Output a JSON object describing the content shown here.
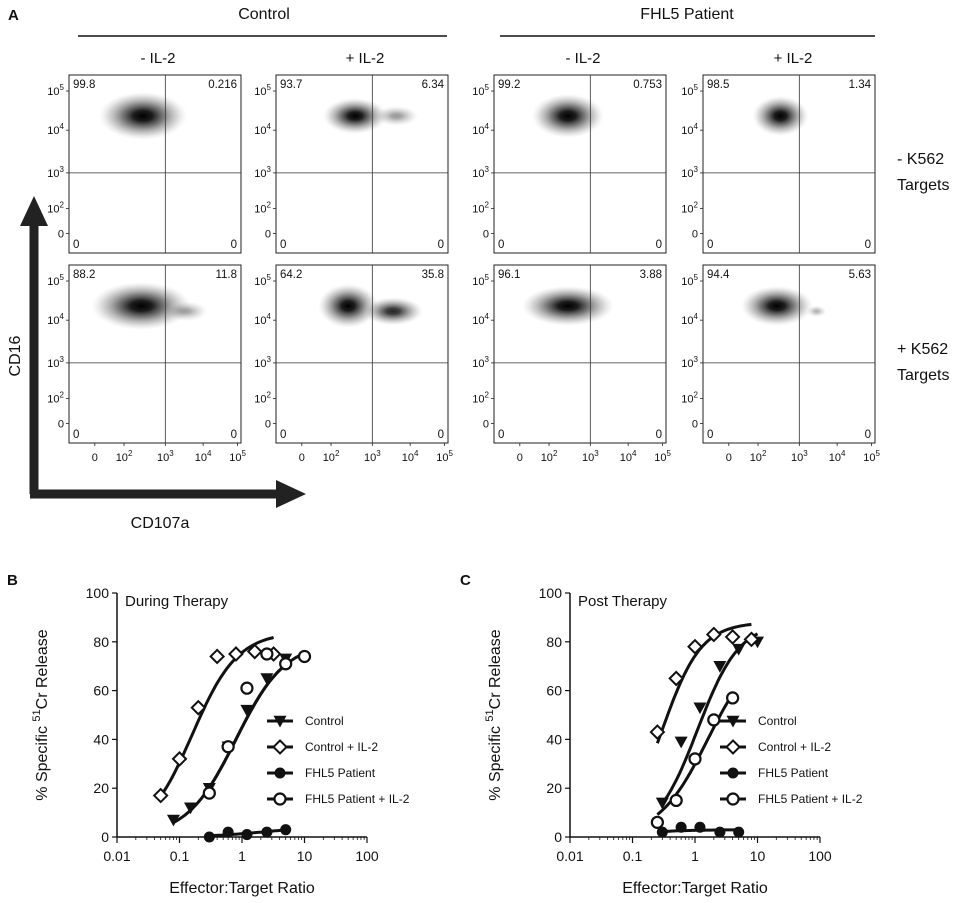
{
  "panel_a": {
    "letter": "A",
    "groups": [
      {
        "name": "Control",
        "columns": [
          "- IL-2",
          "+ IL-2"
        ]
      },
      {
        "name": "FHL5 Patient",
        "columns": [
          "- IL-2",
          "+ IL-2"
        ]
      }
    ],
    "row_labels": [
      {
        "line1": "- K562",
        "line2": "Targets"
      },
      {
        "line1": "+ K562",
        "line2": "Targets"
      }
    ],
    "y_axis_label": "CD16",
    "x_axis_label": "CD107a",
    "y_ticks": [
      {
        "base": "10",
        "exp": "5"
      },
      {
        "base": "10",
        "exp": "4"
      },
      {
        "base": "10",
        "exp": "3"
      },
      {
        "base": "10",
        "exp": "2"
      },
      {
        "base": "0",
        "exp": ""
      }
    ],
    "x_ticks": [
      {
        "base": "0",
        "exp": ""
      },
      {
        "base": "10",
        "exp": "2"
      },
      {
        "base": "10",
        "exp": "3"
      },
      {
        "base": "10",
        "exp": "4"
      },
      {
        "base": "10",
        "exp": "5"
      }
    ],
    "plots": [
      {
        "tl": "99.8",
        "tr": "0.216",
        "bl": "0",
        "br": "0"
      },
      {
        "tl": "93.7",
        "tr": "6.34",
        "bl": "0",
        "br": "0"
      },
      {
        "tl": "99.2",
        "tr": "0.753",
        "bl": "0",
        "br": "0"
      },
      {
        "tl": "98.5",
        "tr": "1.34",
        "bl": "0",
        "br": "0"
      },
      {
        "tl": "88.2",
        "tr": "11.8",
        "bl": "0",
        "br": "0"
      },
      {
        "tl": "64.2",
        "tr": "35.8",
        "bl": "0",
        "br": "0"
      },
      {
        "tl": "96.1",
        "tr": "3.88",
        "bl": "0",
        "br": "0"
      },
      {
        "tl": "94.4",
        "tr": "5.63",
        "bl": "0",
        "br": "0"
      }
    ]
  },
  "chart_data": [
    {
      "type": "scatter",
      "letter": "B",
      "title": "During Therapy",
      "xlabel": "Effector:Target Ratio",
      "ylabel": {
        "pre": "% Specific ",
        "sup": "51",
        "post": "Cr Release"
      },
      "x_scale": "log",
      "xlim": [
        0.01,
        100
      ],
      "ylim": [
        0,
        100
      ],
      "x_ticks": [
        "0.01",
        "0.1",
        "1",
        "10",
        "100"
      ],
      "y_ticks": [
        "0",
        "20",
        "40",
        "60",
        "80",
        "100"
      ],
      "legend": [
        "Control",
        "Control + IL-2",
        "FHL5 Patient",
        "FHL5 Patient + IL-2"
      ],
      "series": [
        {
          "name": "Control",
          "marker": "triangle-down",
          "x": [
            0.08,
            0.15,
            0.3,
            0.6,
            1.2,
            2.5,
            5
          ],
          "y": [
            7,
            12,
            20,
            37,
            52,
            65,
            73
          ],
          "fit": {
            "top": 80,
            "ec50": 0.8,
            "hill": 1.1
          }
        },
        {
          "name": "Control + IL-2",
          "marker": "diamond-open",
          "x": [
            0.05,
            0.1,
            0.2,
            0.4,
            0.8,
            1.6,
            3.2
          ],
          "y": [
            17,
            32,
            53,
            74,
            75,
            76,
            75
          ],
          "fit": {
            "top": 84,
            "ec50": 0.16,
            "hill": 1.2
          }
        },
        {
          "name": "FHL5 Patient",
          "marker": "circle-filled",
          "x": [
            0.3,
            0.6,
            1.2,
            2.5,
            5
          ],
          "y": [
            0,
            2,
            1,
            2,
            3
          ],
          "fit": {
            "top": 4,
            "ec50": 2,
            "hill": 1
          }
        },
        {
          "name": "FHL5 Patient + IL-2",
          "marker": "circle-open",
          "x": [
            0.3,
            0.6,
            1.2,
            2.5,
            5,
            10
          ],
          "y": [
            18,
            37,
            61,
            75,
            71,
            74
          ],
          "fit": {
            "top": 80,
            "ec50": 0.8,
            "hill": 1.1
          }
        }
      ]
    },
    {
      "type": "scatter",
      "letter": "C",
      "title": "Post Therapy",
      "xlabel": "Effector:Target Ratio",
      "ylabel": {
        "pre": "% Specific ",
        "sup": "51",
        "post": "Cr Release"
      },
      "x_scale": "log",
      "xlim": [
        0.01,
        100
      ],
      "ylim": [
        0,
        100
      ],
      "x_ticks": [
        "0.01",
        "0.1",
        "1",
        "10",
        "100"
      ],
      "y_ticks": [
        "0",
        "20",
        "40",
        "60",
        "80",
        "100"
      ],
      "legend": [
        "Control",
        "Control + IL-2",
        "FHL5 Patient",
        "FHL5 Patient + IL-2"
      ],
      "series": [
        {
          "name": "Control",
          "marker": "triangle-down",
          "x": [
            0.3,
            0.6,
            1.2,
            2.5,
            5,
            10
          ],
          "y": [
            14,
            39,
            53,
            70,
            77,
            80
          ],
          "fit": {
            "top": 88,
            "ec50": 1.1,
            "hill": 1.3
          }
        },
        {
          "name": "Control + IL-2",
          "marker": "diamond-open",
          "x": [
            0.25,
            0.5,
            1,
            2,
            4,
            8
          ],
          "y": [
            43,
            65,
            78,
            83,
            82,
            81
          ],
          "fit": {
            "top": 88,
            "ec50": 0.3,
            "hill": 1.4
          }
        },
        {
          "name": "FHL5 Patient",
          "marker": "circle-filled",
          "x": [
            0.3,
            0.6,
            1.2,
            2.5,
            5
          ],
          "y": [
            2,
            4,
            4,
            2,
            2
          ],
          "fit": {
            "top": 3,
            "ec50": 0.1,
            "hill": 1
          }
        },
        {
          "name": "FHL5 Patient + IL-2",
          "marker": "circle-open",
          "x": [
            0.25,
            0.5,
            1,
            2,
            4
          ],
          "y": [
            6,
            15,
            32,
            48,
            57
          ],
          "fit": {
            "top": 80,
            "ec50": 1.6,
            "hill": 1.1
          }
        }
      ]
    }
  ]
}
